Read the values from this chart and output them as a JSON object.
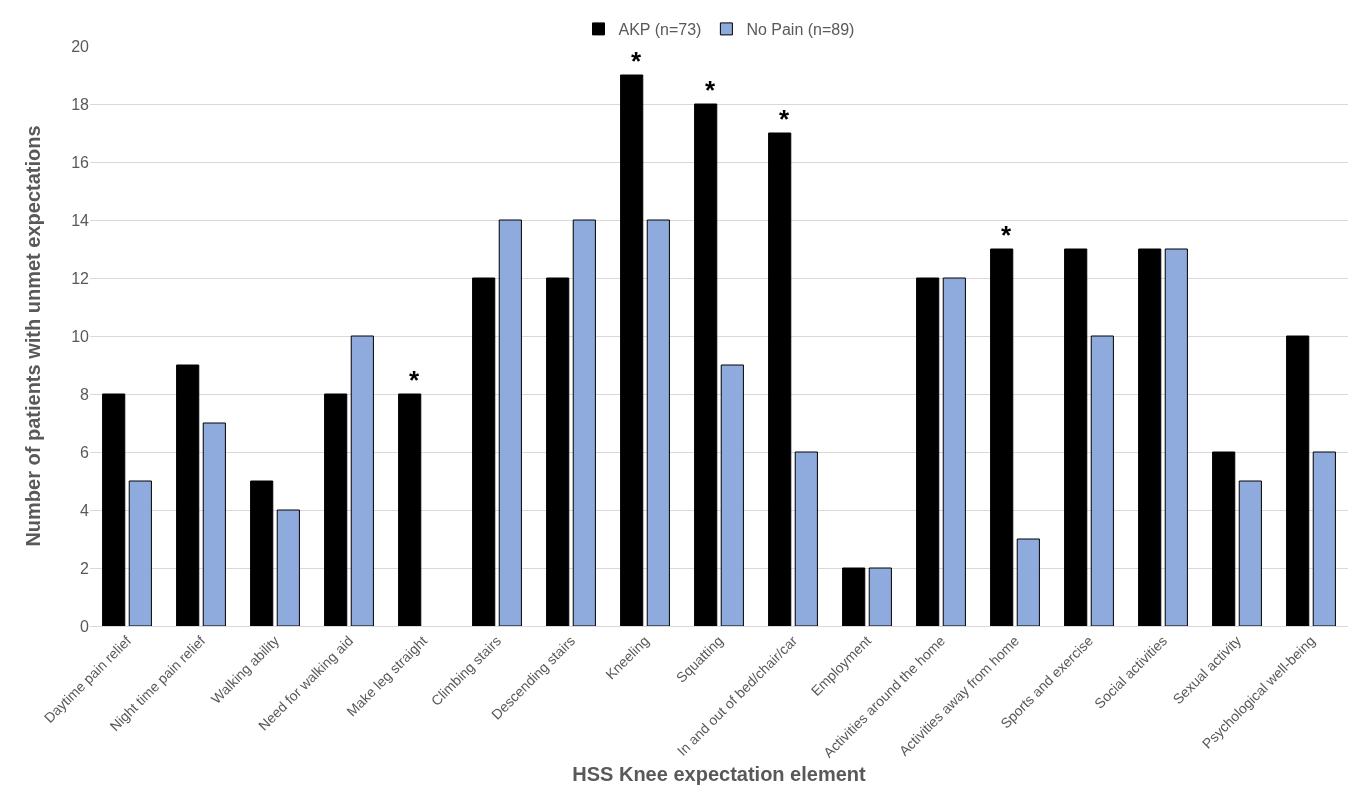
{
  "chart_data": {
    "type": "bar",
    "xlabel": "HSS Knee expectation element",
    "ylabel": "Number of patients with unmet expectations",
    "categories": [
      "Daytime pain relief",
      "Night time pain relief",
      "Walking ability",
      "Need for walking aid",
      "Make leg straight",
      "Climbing stairs",
      "Descending stairs",
      "Kneeling",
      "Squatting",
      "In and out of bed/chair/car",
      "Employment",
      "Activities around the home",
      "Activities away from home",
      "Sports and exercise",
      "Social activities",
      "Sexual activity",
      "Psychological well-being"
    ],
    "series": [
      {
        "name": "AKP (n=73)",
        "color": "#000000",
        "values": [
          8,
          9,
          5,
          8,
          8,
          12,
          12,
          19,
          18,
          17,
          2,
          12,
          13,
          13,
          13,
          6,
          10
        ]
      },
      {
        "name": "No Pain (n=89)",
        "color": "#8faadc",
        "values": [
          5,
          7,
          4,
          10,
          null,
          14,
          14,
          14,
          9,
          6,
          2,
          12,
          3,
          10,
          13,
          5,
          6
        ]
      }
    ],
    "ylim": [
      0,
      20
    ],
    "yticks": [
      0,
      2,
      4,
      6,
      8,
      10,
      12,
      14,
      16,
      18,
      20
    ],
    "grid": "y",
    "legend": "top",
    "annotations": [
      {
        "text": "*",
        "x": "Make leg straight",
        "y": 8
      },
      {
        "text": "*",
        "x": "Kneeling",
        "y": 19
      },
      {
        "text": "*",
        "x": "Squatting",
        "y": 18
      },
      {
        "text": "*",
        "x": "In and out of bed/chair/car",
        "y": 17
      },
      {
        "text": "*",
        "x": "Activities away from home",
        "y": 13
      }
    ]
  }
}
